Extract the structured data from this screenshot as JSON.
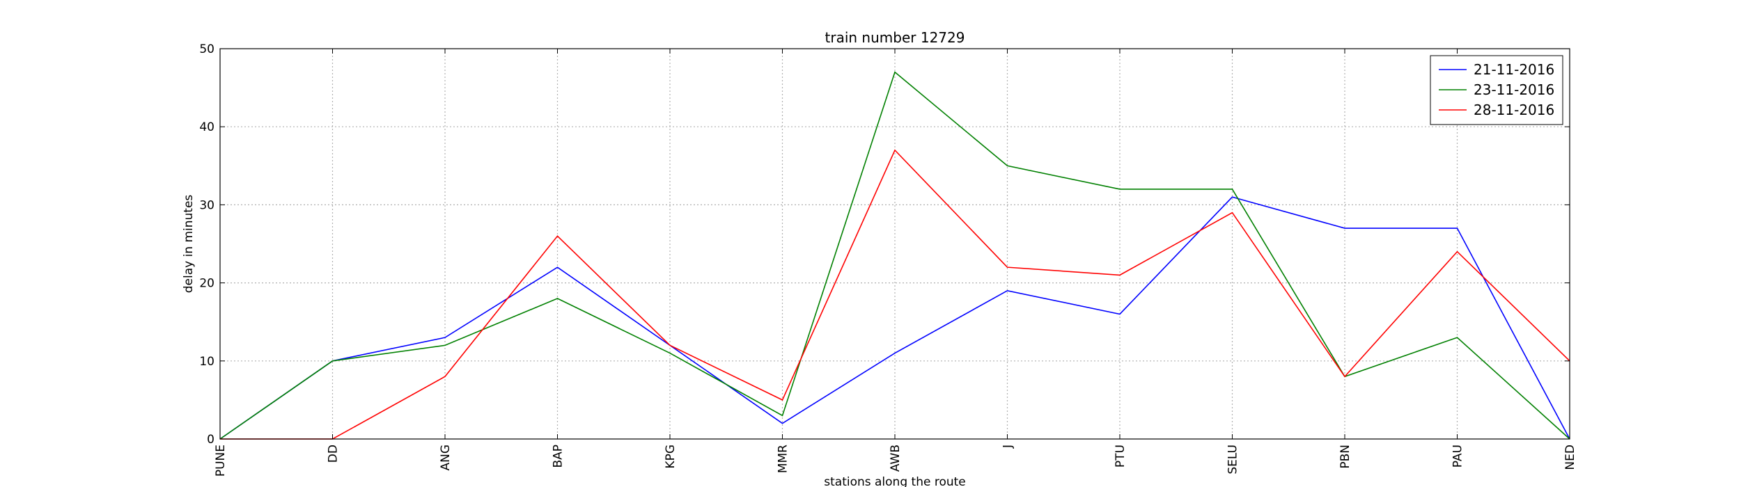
{
  "chart_data": {
    "type": "line",
    "title": "train number 12729",
    "xlabel": "stations along the route",
    "ylabel": "delay in minutes",
    "categories": [
      "PUNE",
      "DD",
      "ANG",
      "BAP",
      "KPG",
      "MMR",
      "AWB",
      "J",
      "PTU",
      "SELU",
      "PBN",
      "PAU",
      "NED"
    ],
    "ylim": [
      0,
      50
    ],
    "yticks": [
      0,
      10,
      20,
      30,
      40,
      50
    ],
    "grid": true,
    "legend_position": "top-right",
    "series": [
      {
        "name": "21-11-2016",
        "color": "#0000ff",
        "values": [
          0,
          10,
          13,
          22,
          12,
          2,
          11,
          19,
          16,
          31,
          27,
          27,
          0
        ]
      },
      {
        "name": "23-11-2016",
        "color": "#008000",
        "values": [
          0,
          10,
          12,
          18,
          11,
          3,
          47,
          35,
          32,
          32,
          8,
          13,
          0
        ]
      },
      {
        "name": "28-11-2016",
        "color": "#ff0000",
        "values": [
          0,
          0,
          8,
          26,
          12,
          5,
          37,
          22,
          21,
          29,
          8,
          24,
          10
        ]
      }
    ]
  }
}
